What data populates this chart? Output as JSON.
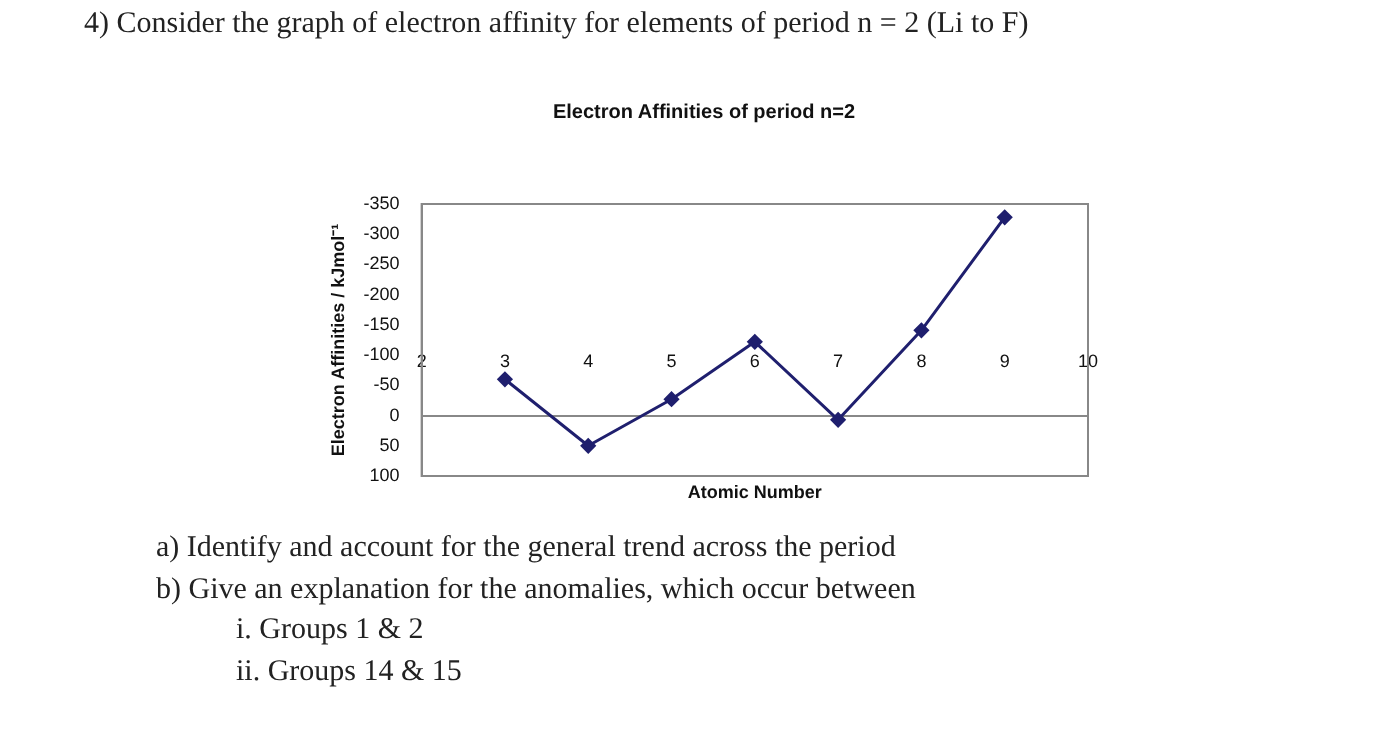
{
  "chart_data": {
    "type": "line",
    "title": "Electron Affinities of period n=2",
    "xlabel": "Atomic Number",
    "ylabel": "Electron Affinities / kJmol⁻¹",
    "annotations": [
      "4) Consider the graph of electron affinity for elements of period n = 2 (Li to F)",
      "a) Identify and account for the general trend across the period",
      "b) Give an explanation for the anomalies, which occur between",
      "i. Groups 1 & 2",
      "ii. Groups 14 & 15"
    ],
    "x": [
      3,
      4,
      5,
      6,
      7,
      8,
      9
    ],
    "series": [
      {
        "color": "#1f1f6e",
        "values": [
          -60,
          50,
          -27,
          -122,
          7,
          -141,
          -328
        ]
      }
    ],
    "xlim": [
      2,
      10
    ],
    "xticks": [
      2,
      3,
      4,
      5,
      6,
      7,
      8,
      9,
      10
    ],
    "ylim": [
      100,
      -350
    ],
    "yticks": [
      -350,
      -300,
      -250,
      -200,
      -150,
      -100,
      -50,
      0,
      50,
      100
    ],
    "grid": false,
    "legend": false,
    "marker": "diamond",
    "line_style": "solid"
  }
}
